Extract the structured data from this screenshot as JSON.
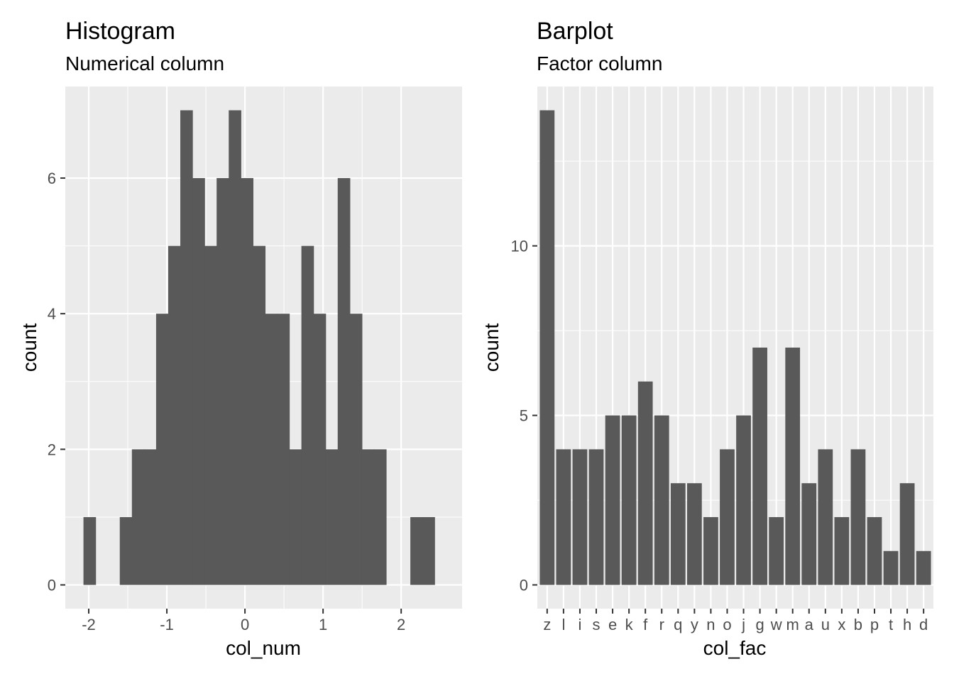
{
  "colors": {
    "panel_background": "#ebebeb",
    "grid": "#ffffff",
    "bar_fill": "#595959",
    "tick": "#333333",
    "tick_label": "#4d4d4d",
    "text": "#000000"
  },
  "chart_data": [
    {
      "type": "bar",
      "title": "Histogram",
      "subtitle": "Numerical column",
      "xlabel": "col_num",
      "ylabel": "count",
      "xlim": [
        -2.3,
        2.78
      ],
      "ylim": [
        -0.35,
        7.35
      ],
      "x_ticks": [
        -2,
        -1,
        0,
        1,
        2
      ],
      "x_tick_labels": [
        "-2",
        "-1",
        "0",
        "1",
        "2"
      ],
      "y_ticks": [
        0,
        2,
        4,
        6
      ],
      "y_tick_labels": [
        "0",
        "2",
        "4",
        "6"
      ],
      "grid": true,
      "bin_width": 0.155,
      "bin_centers": [
        -1.99,
        -1.835,
        -1.68,
        -1.525,
        -1.37,
        -1.215,
        -1.06,
        -0.905,
        -0.75,
        -0.595,
        -0.44,
        -0.285,
        -0.13,
        0.025,
        0.18,
        0.335,
        0.49,
        0.645,
        0.8,
        0.955,
        1.11,
        1.265,
        1.42,
        1.575,
        1.73,
        1.885,
        2.04,
        2.195,
        2.35
      ],
      "values": [
        1,
        0,
        0,
        1,
        2,
        2,
        4,
        5,
        7,
        6,
        5,
        6,
        7,
        6,
        5,
        4,
        4,
        2,
        5,
        4,
        2,
        6,
        4,
        2,
        2,
        0,
        0,
        1,
        1
      ]
    },
    {
      "type": "bar",
      "title": "Barplot",
      "subtitle": "Factor column",
      "xlabel": "col_fac",
      "ylabel": "count",
      "ylim": [
        -0.7,
        14.7
      ],
      "y_ticks": [
        0,
        5,
        10
      ],
      "y_tick_labels": [
        "0",
        "5",
        "10"
      ],
      "grid": true,
      "categories": [
        "z",
        "l",
        "i",
        "s",
        "e",
        "k",
        "f",
        "r",
        "q",
        "y",
        "n",
        "o",
        "j",
        "g",
        "w",
        "m",
        "a",
        "u",
        "x",
        "b",
        "p",
        "t",
        "h",
        "d"
      ],
      "values": [
        14,
        4,
        4,
        4,
        5,
        5,
        6,
        5,
        3,
        3,
        2,
        4,
        5,
        7,
        2,
        7,
        3,
        4,
        2,
        4,
        2,
        1,
        3,
        1
      ]
    }
  ]
}
